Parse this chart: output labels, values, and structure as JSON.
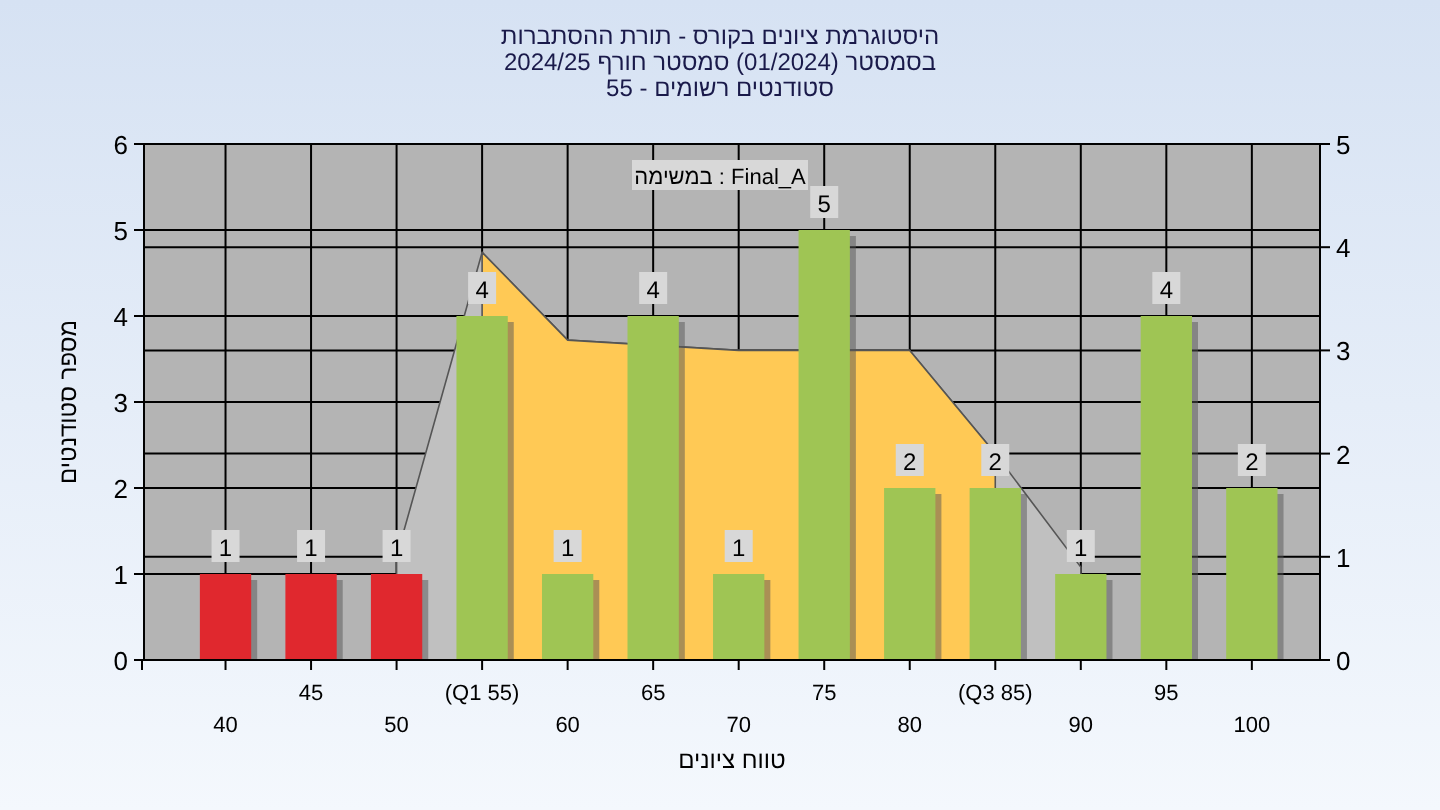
{
  "chart_data": {
    "type": "bar",
    "title": "היסטוגרמת ציונים בקורס - תורת ההסתברות",
    "subtitle": "בסמסטר (01/2024) סמסטר חורף 2024/25",
    "annotations": [
      "סטודנטים רשומים - 55",
      "במשימה : Final_A"
    ],
    "xlabel": "טווח ציונים",
    "ylabel": "מספר סטודנטים",
    "categories": [
      "40",
      "45",
      "50",
      "(Q1 55)",
      "60",
      "65",
      "70",
      "75",
      "80",
      "(Q3 85)",
      "90",
      "95",
      "100"
    ],
    "series": [
      {
        "type": "area",
        "axis": "y2",
        "color": "#c0c0c0",
        "values": [
          null,
          null,
          1,
          3.95,
          3.1,
          null,
          3,
          null,
          3,
          2,
          0.9,
          null,
          null
        ]
      },
      {
        "type": "area",
        "axis": "y2",
        "color": "#ffc955",
        "values": [
          null,
          null,
          null,
          3.95,
          3.1,
          null,
          3,
          null,
          3,
          2,
          null,
          null,
          null
        ]
      },
      {
        "value_labels": [
          "1",
          "1",
          "1",
          "4",
          "1",
          "4",
          "1",
          "5",
          "2",
          "2",
          "1",
          "4",
          "2"
        ],
        "colors": [
          "#e0282e",
          "#e0282e",
          "#e0282e",
          "#9fc554",
          "#9fc554",
          "#9fc554",
          "#9fc554",
          "#9fc554",
          "#9fc554",
          "#9fc554",
          "#9fc554",
          "#9fc554",
          "#9fc554"
        ],
        "values": [
          1,
          1,
          1,
          4,
          1,
          4,
          1,
          5,
          2,
          2,
          1,
          4,
          2
        ]
      }
    ],
    "grid": true,
    "ylim": [
      0,
      6
    ],
    "yticks": [
      0,
      1,
      2,
      3,
      4,
      5,
      6
    ],
    "y2lim": [
      0,
      5
    ],
    "y2ticks": [
      0,
      1,
      2,
      3,
      4,
      5
    ]
  }
}
